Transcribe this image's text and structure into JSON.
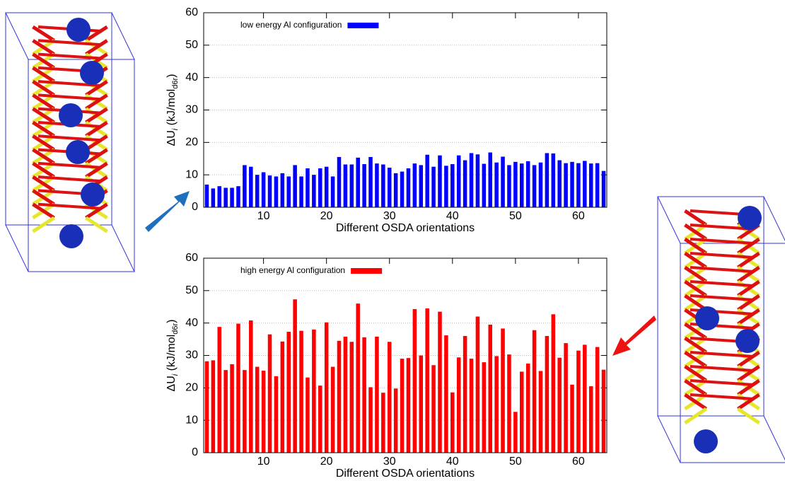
{
  "chart_data": [
    {
      "type": "bar",
      "x": [
        1,
        2,
        3,
        4,
        5,
        6,
        7,
        8,
        9,
        10,
        11,
        12,
        13,
        14,
        15,
        16,
        17,
        18,
        19,
        20,
        21,
        22,
        23,
        24,
        25,
        26,
        27,
        28,
        29,
        30,
        31,
        32,
        33,
        34,
        35,
        36,
        37,
        38,
        39,
        40,
        41,
        42,
        43,
        44,
        45,
        46,
        47,
        48,
        49,
        50,
        51,
        52,
        53,
        54,
        55,
        56,
        57,
        58,
        59,
        60,
        61,
        62,
        63,
        64
      ],
      "series": [
        {
          "name": "low energy Al configuration",
          "color": "#0000ff",
          "values": [
            7,
            5.8,
            6.5,
            6,
            6,
            6.5,
            13,
            12.5,
            10,
            10.8,
            9.8,
            9.5,
            10.5,
            9.5,
            13,
            9.5,
            12,
            10,
            12,
            12.5,
            9.5,
            15.5,
            13.2,
            13.2,
            15.3,
            13.3,
            15.5,
            13.5,
            13.2,
            12.2,
            10.5,
            11,
            12,
            13.5,
            13,
            16.2,
            12.5,
            16,
            12.8,
            13.3,
            16,
            14.5,
            16.7,
            16.3,
            13.4,
            16.9,
            13.8,
            15.6,
            13,
            14,
            13.5,
            14.2,
            13,
            13.8,
            16.7,
            16.6,
            14.5,
            13.6,
            14,
            13.6,
            14.3,
            13.5,
            13.6,
            11.2
          ]
        }
      ],
      "xlabel": "Different OSDA orientations",
      "ylabel": [
        "ΔU",
        "i",
        " (kJ/mol",
        "d6r",
        ")"
      ],
      "xlim": [
        0.5,
        64.5
      ],
      "xticks": [
        10,
        20,
        30,
        40,
        50,
        60
      ],
      "ylim": [
        0,
        60
      ],
      "yticks": [
        0,
        10,
        20,
        30,
        40,
        50,
        60
      ],
      "grid": true,
      "legend": "top-left"
    },
    {
      "type": "bar",
      "x": [
        1,
        2,
        3,
        4,
        5,
        6,
        7,
        8,
        9,
        10,
        11,
        12,
        13,
        14,
        15,
        16,
        17,
        18,
        19,
        20,
        21,
        22,
        23,
        24,
        25,
        26,
        27,
        28,
        29,
        30,
        31,
        32,
        33,
        34,
        35,
        36,
        37,
        38,
        39,
        40,
        41,
        42,
        43,
        44,
        45,
        46,
        47,
        48,
        49,
        50,
        51,
        52,
        53,
        54,
        55,
        56,
        57,
        58,
        59,
        60,
        61,
        62,
        63,
        64
      ],
      "series": [
        {
          "name": "high energy Al configuration",
          "color": "#ff0000",
          "values": [
            28.2,
            28.5,
            38.8,
            25.5,
            27.3,
            39.8,
            25.5,
            40.8,
            26.5,
            25.3,
            36.5,
            23.6,
            34.3,
            37.3,
            47.3,
            37.6,
            23.2,
            38,
            20.7,
            40.2,
            26.5,
            34.5,
            35.8,
            34.2,
            46,
            35.6,
            20.2,
            35.8,
            18.5,
            34.2,
            19.8,
            29,
            29.2,
            44.3,
            30,
            44.5,
            27,
            43.5,
            36.2,
            18.6,
            29.4,
            36,
            29,
            42,
            27.9,
            39.5,
            29.8,
            38.3,
            30.3,
            12.6,
            25,
            27.5,
            37.8,
            25.2,
            36,
            42.7,
            29.3,
            33.8,
            21,
            31.5,
            33.3,
            20.5,
            32.6,
            25.6
          ]
        }
      ],
      "xlabel": "Different OSDA orientations",
      "ylabel": [
        "ΔU",
        "i",
        " (kJ/mol",
        "d6r",
        ")"
      ],
      "xlim": [
        0.5,
        64.5
      ],
      "xticks": [
        10,
        20,
        30,
        40,
        50,
        60
      ],
      "ylim": [
        0,
        60
      ],
      "yticks": [
        0,
        10,
        20,
        30,
        40,
        50,
        60
      ],
      "grid": true,
      "legend": "top-left"
    }
  ]
}
